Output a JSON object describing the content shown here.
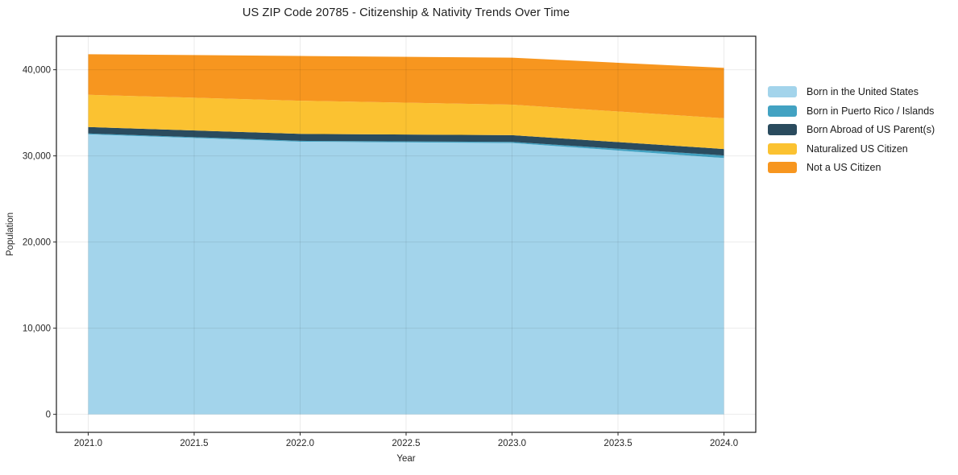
{
  "chart_data": {
    "type": "area",
    "stacked": true,
    "title": "US ZIP Code 20785 - Citizenship & Nativity Trends Over Time",
    "xlabel": "Year",
    "ylabel": "Population",
    "x": [
      2021,
      2022,
      2023,
      2024
    ],
    "series": [
      {
        "name": "Born in the United States",
        "color": "#a3d4eb",
        "values": [
          32500,
          31650,
          31500,
          29750
        ]
      },
      {
        "name": "Born in Puerto Rico / Islands",
        "color": "#42a2c2",
        "values": [
          100,
          100,
          120,
          300
        ]
      },
      {
        "name": "Born Abroad of US Parent(s)",
        "color": "#2a4b5e",
        "values": [
          750,
          800,
          780,
          750
        ]
      },
      {
        "name": "Naturalized US Citizen",
        "color": "#fbc231",
        "values": [
          3750,
          3850,
          3550,
          3570
        ]
      },
      {
        "name": "Not a US Citizen",
        "color": "#f7961f",
        "values": [
          4700,
          5200,
          5450,
          5850
        ]
      }
    ],
    "totals": [
      41800,
      41600,
      41400,
      40220
    ],
    "xlim": [
      2020.85,
      2024.15
    ],
    "ylim": [
      -2090,
      43890
    ],
    "xticks": [
      {
        "v": 2021.0,
        "label": "2021.0"
      },
      {
        "v": 2021.5,
        "label": "2021.5"
      },
      {
        "v": 2022.0,
        "label": "2022.0"
      },
      {
        "v": 2022.5,
        "label": "2022.5"
      },
      {
        "v": 2023.0,
        "label": "2023.0"
      },
      {
        "v": 2023.5,
        "label": "2023.5"
      },
      {
        "v": 2024.0,
        "label": "2024.0"
      }
    ],
    "yticks": [
      {
        "v": 0,
        "label": "0"
      },
      {
        "v": 10000,
        "label": "10,000"
      },
      {
        "v": 20000,
        "label": "20,000"
      },
      {
        "v": 30000,
        "label": "30,000"
      },
      {
        "v": 40000,
        "label": "40,000"
      }
    ],
    "grid": true,
    "legend_position": "right-outside"
  },
  "colors": {
    "background": "#ffffff",
    "grid": "rgba(0,0,0,0.08)",
    "spine": "#1a1a1a",
    "tick": "#262626",
    "text": "#1a1a1a"
  }
}
